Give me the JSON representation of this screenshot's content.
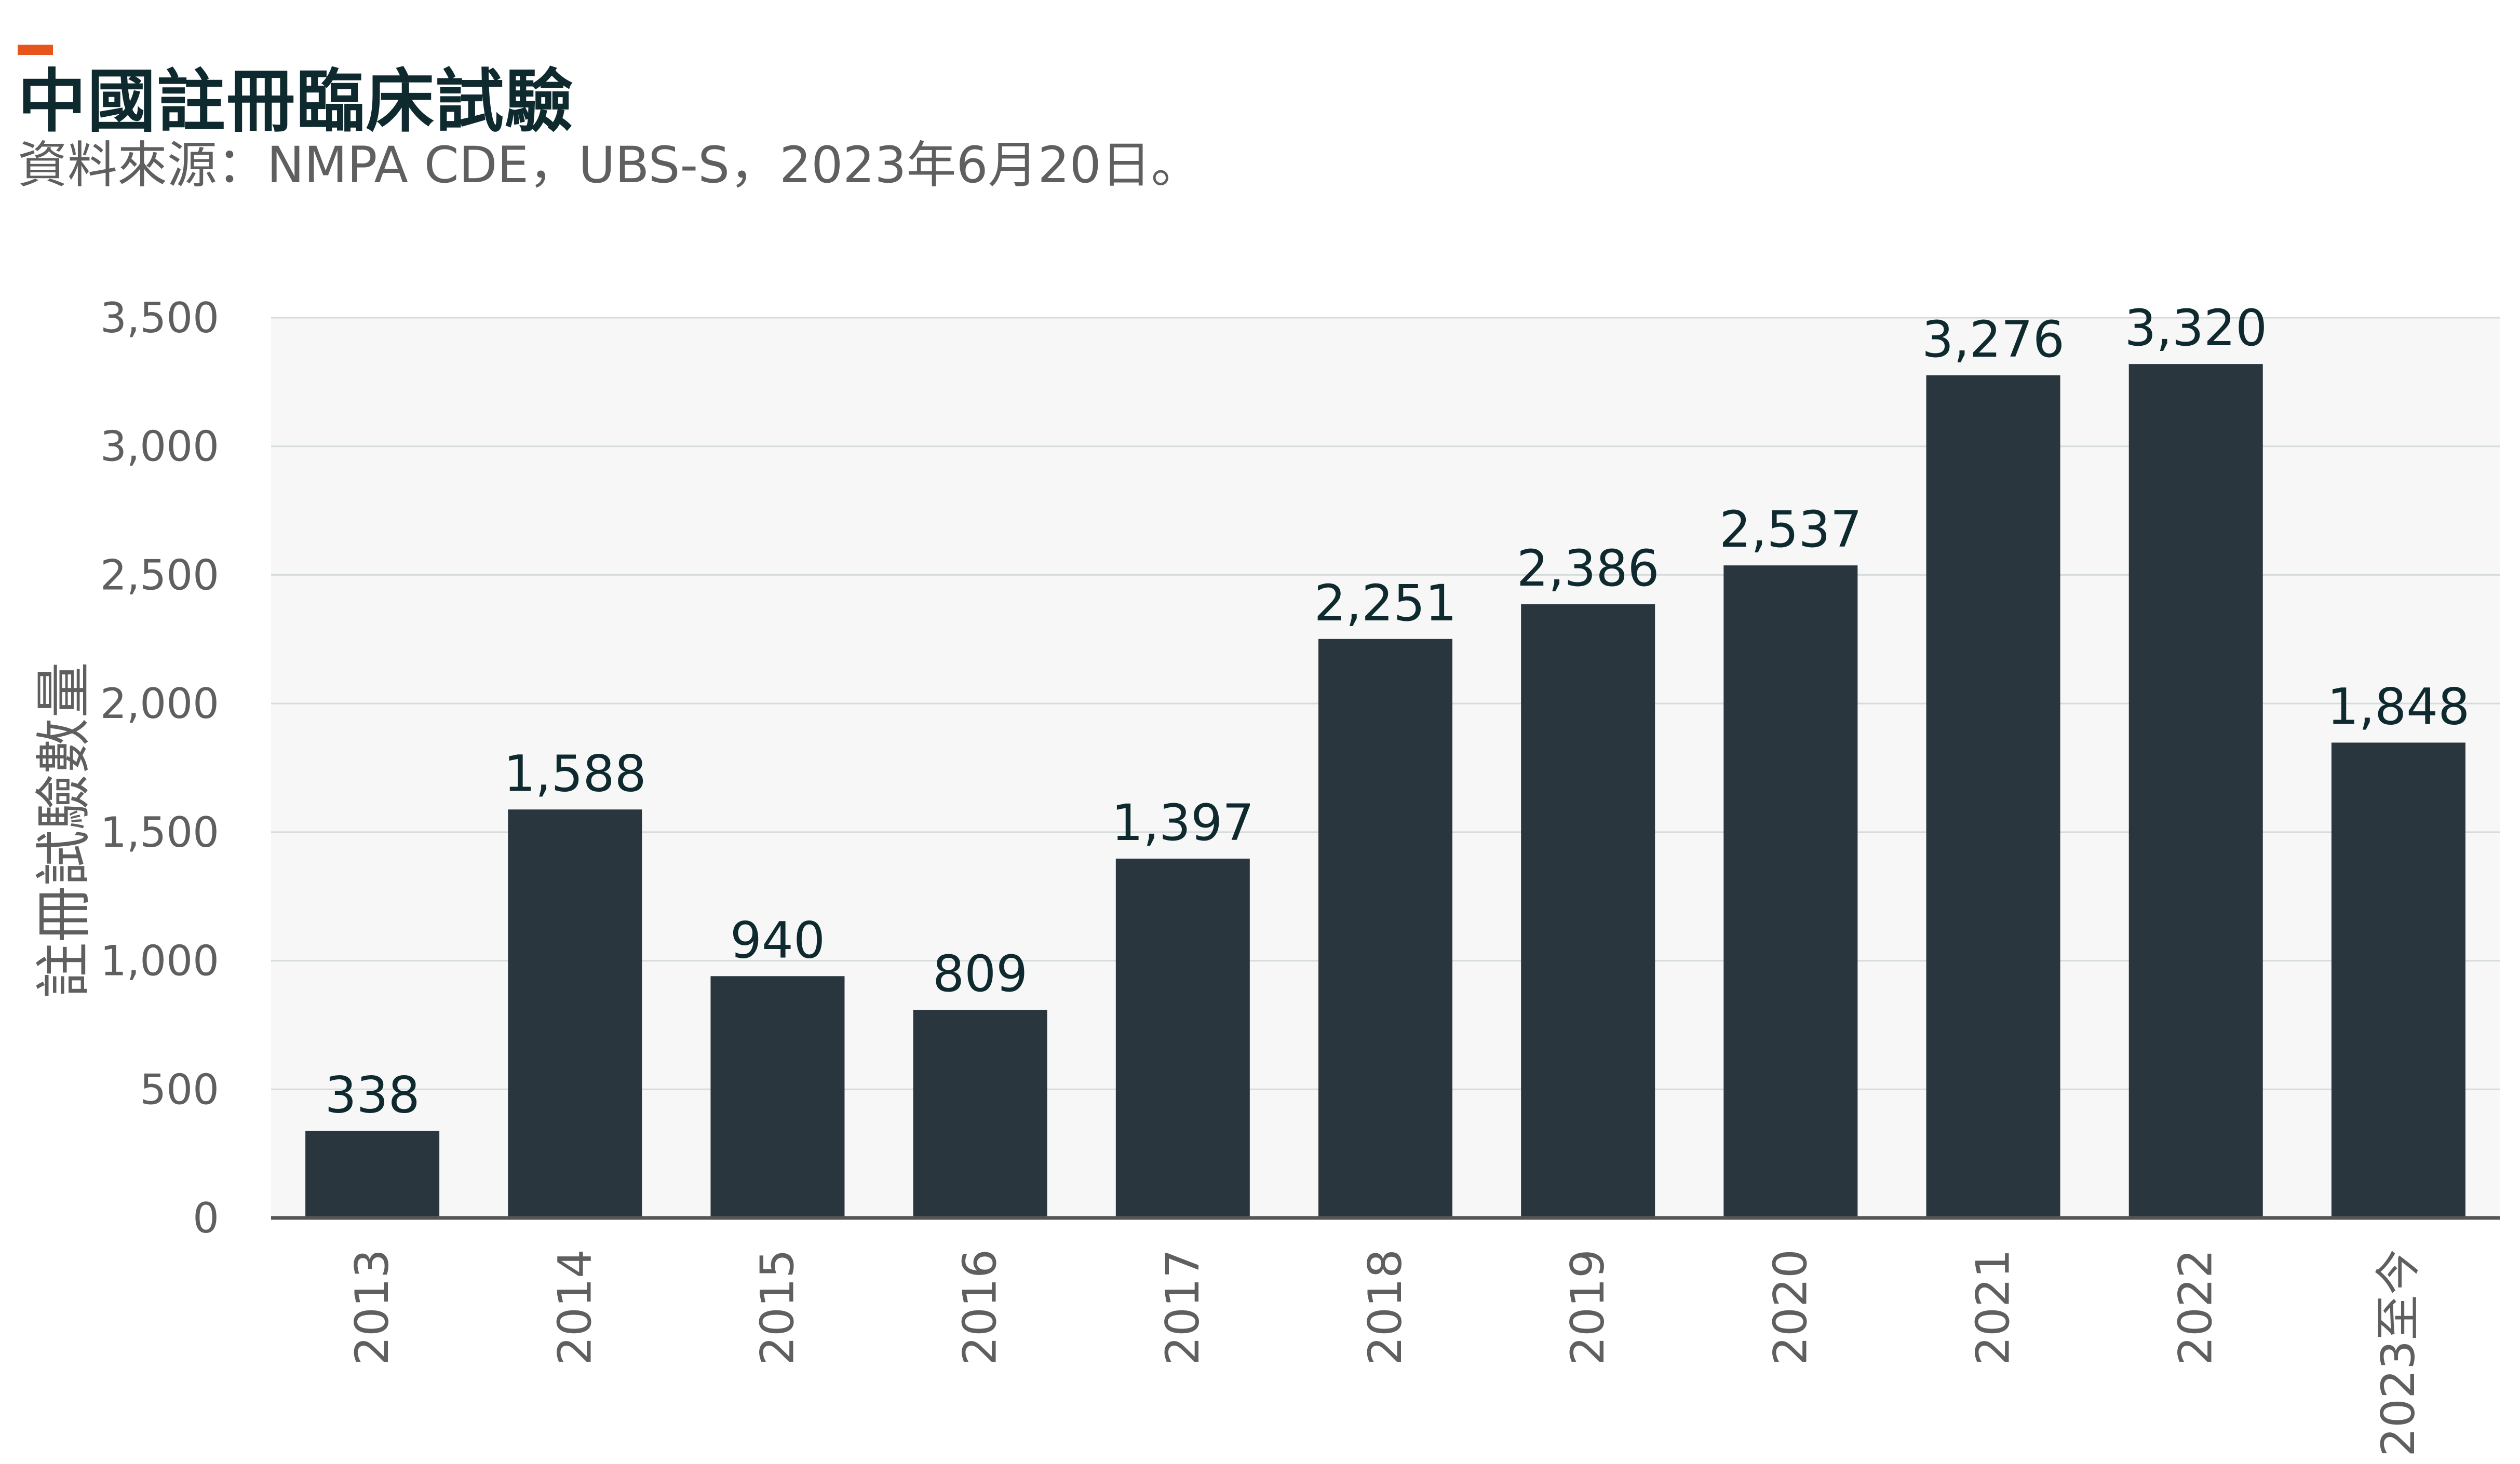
{
  "title": "中國註冊臨床試驗",
  "subtitle": "資料來源：NMPA CDE，UBS-S，2023年6月20日。",
  "colors": {
    "accent": "#e8541e",
    "bar": "#2a363d",
    "title": "#0f2a2f",
    "subtitle": "#5f5f5f",
    "plot_bg": "#f6f7f6",
    "grid": "#d6dbdb",
    "axis": "#555555",
    "tick_label": "#5f5f5f",
    "data_label": "#0f2a2f"
  },
  "chart_data": {
    "type": "bar",
    "categories": [
      "2013",
      "2014",
      "2015",
      "2016",
      "2017",
      "2018",
      "2019",
      "2020",
      "2021",
      "2022",
      "2023至今"
    ],
    "values": [
      338,
      1588,
      940,
      809,
      1397,
      2251,
      2386,
      2537,
      3276,
      3320,
      1848
    ],
    "data_labels": [
      "338",
      "1,588",
      "940",
      "809",
      "1,397",
      "2,251",
      "2,386",
      "2,537",
      "3,276",
      "3,320",
      "1,848"
    ],
    "xlabel": "",
    "ylabel": "註冊試驗數量",
    "ylim": [
      0,
      3500
    ],
    "yticks": [
      0,
      500,
      1000,
      1500,
      2000,
      2500,
      3000,
      3500
    ],
    "ytick_labels": [
      "0",
      "500",
      "1,000",
      "1,500",
      "2,000",
      "2,500",
      "3,000",
      "3,500"
    ],
    "grid": true,
    "legend": "none"
  }
}
